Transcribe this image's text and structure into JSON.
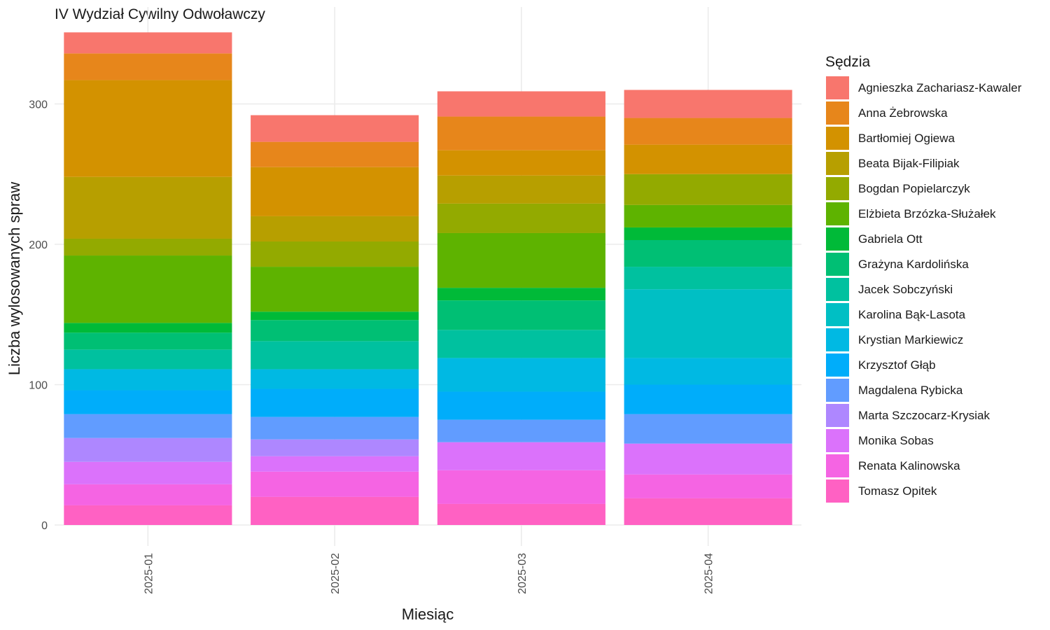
{
  "chart_data": {
    "type": "bar",
    "stacked": true,
    "title": "IV Wydział Cywilny Odwoławczy",
    "xlabel": "Miesiąc",
    "ylabel": "Liczba wylosowanych spraw",
    "ylim": [
      0,
      369
    ],
    "yticks": [
      0,
      100,
      200,
      300
    ],
    "grid": true,
    "legend_title": "Sędzia",
    "legend_position": "right",
    "categories": [
      "2025-01",
      "2025-02",
      "2025-03",
      "2025-04"
    ],
    "series": [
      {
        "name": "Agnieszka Zachariasz-Kawaler",
        "color": "#F8766D",
        "values": [
          15,
          19,
          18,
          20
        ]
      },
      {
        "name": "Anna Żebrowska",
        "color": "#E7861B",
        "values": [
          19,
          18,
          24,
          19
        ]
      },
      {
        "name": "Bartłomiej Ogiewa",
        "color": "#D39200",
        "values": [
          69,
          35,
          18,
          21
        ]
      },
      {
        "name": "Beata Bijak-Filipiak",
        "color": "#B79F00",
        "values": [
          44,
          18,
          20,
          0
        ]
      },
      {
        "name": "Bogdan Popielarczyk",
        "color": "#93AA00",
        "values": [
          12,
          18,
          21,
          22
        ]
      },
      {
        "name": "Elżbieta Brzózka-Służałek",
        "color": "#5EB300",
        "values": [
          48,
          32,
          39,
          16
        ]
      },
      {
        "name": "Gabriela Ott",
        "color": "#00BA38",
        "values": [
          7,
          6,
          9,
          9
        ]
      },
      {
        "name": "Grażyna Kardolińska",
        "color": "#00BF74",
        "values": [
          12,
          15,
          21,
          19
        ]
      },
      {
        "name": "Jacek Sobczyński",
        "color": "#00C19F",
        "values": [
          14,
          20,
          20,
          16
        ]
      },
      {
        "name": "Karolina Bąk-Lasota",
        "color": "#00BFC4",
        "values": [
          0,
          0,
          0,
          49
        ]
      },
      {
        "name": "Krystian Markiewicz",
        "color": "#00B9E3",
        "values": [
          15,
          14,
          24,
          19
        ]
      },
      {
        "name": "Krzysztof Głąb",
        "color": "#00ADFA",
        "values": [
          17,
          20,
          20,
          21
        ]
      },
      {
        "name": "Magdalena Rybicka",
        "color": "#619CFF",
        "values": [
          17,
          16,
          16,
          21
        ]
      },
      {
        "name": "Marta Szczocarz-Krysiak",
        "color": "#AE87FF",
        "values": [
          17,
          12,
          0,
          0
        ]
      },
      {
        "name": "Monika Sobas",
        "color": "#DB72FB",
        "values": [
          16,
          11,
          20,
          22
        ]
      },
      {
        "name": "Renata Kalinowska",
        "color": "#F564E3",
        "values": [
          15,
          18,
          24,
          17
        ]
      },
      {
        "name": "Tomasz Opitek",
        "color": "#FF61C3",
        "values": [
          14,
          20,
          15,
          19
        ]
      }
    ]
  }
}
